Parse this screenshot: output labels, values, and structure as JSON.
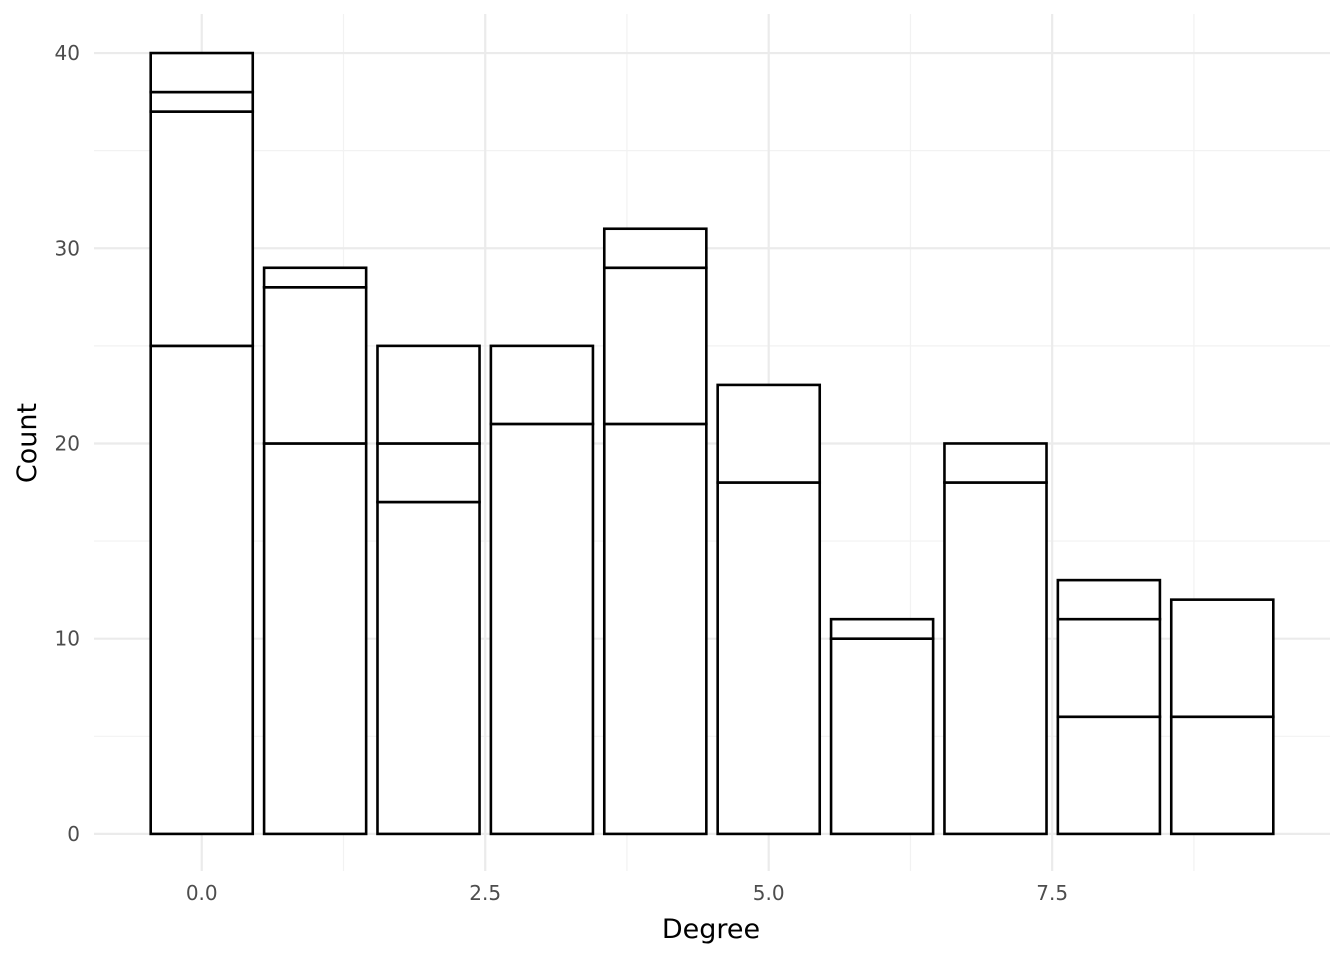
{
  "chart_data": {
    "type": "bar",
    "stacked": true,
    "title": "",
    "xlabel": "Degree",
    "ylabel": "Count",
    "x": [
      0,
      1,
      2,
      3,
      4,
      5,
      6,
      7,
      8,
      9
    ],
    "stacks": [
      [
        25,
        12,
        1,
        2
      ],
      [
        20,
        8,
        1
      ],
      [
        17,
        3,
        5
      ],
      [
        21,
        4
      ],
      [
        21,
        8,
        2
      ],
      [
        18,
        5
      ],
      [
        10,
        1
      ],
      [
        18,
        2
      ],
      [
        6,
        5,
        2
      ],
      [
        6,
        6
      ]
    ],
    "totals": [
      40,
      29,
      25,
      25,
      31,
      23,
      11,
      20,
      13,
      12
    ],
    "xlim": [
      -0.95,
      9.95
    ],
    "ylim": [
      -1.9,
      42
    ],
    "x_ticks": [
      0.0,
      2.5,
      5.0,
      7.5
    ],
    "x_tick_labels": [
      "0.0",
      "2.5",
      "5.0",
      "7.5"
    ],
    "y_ticks": [
      0,
      10,
      20,
      30,
      40
    ],
    "y_tick_labels": [
      "0",
      "10",
      "20",
      "30",
      "40"
    ],
    "grid": true,
    "bar_fill": "#ffffff",
    "bar_outline": "#000000"
  }
}
